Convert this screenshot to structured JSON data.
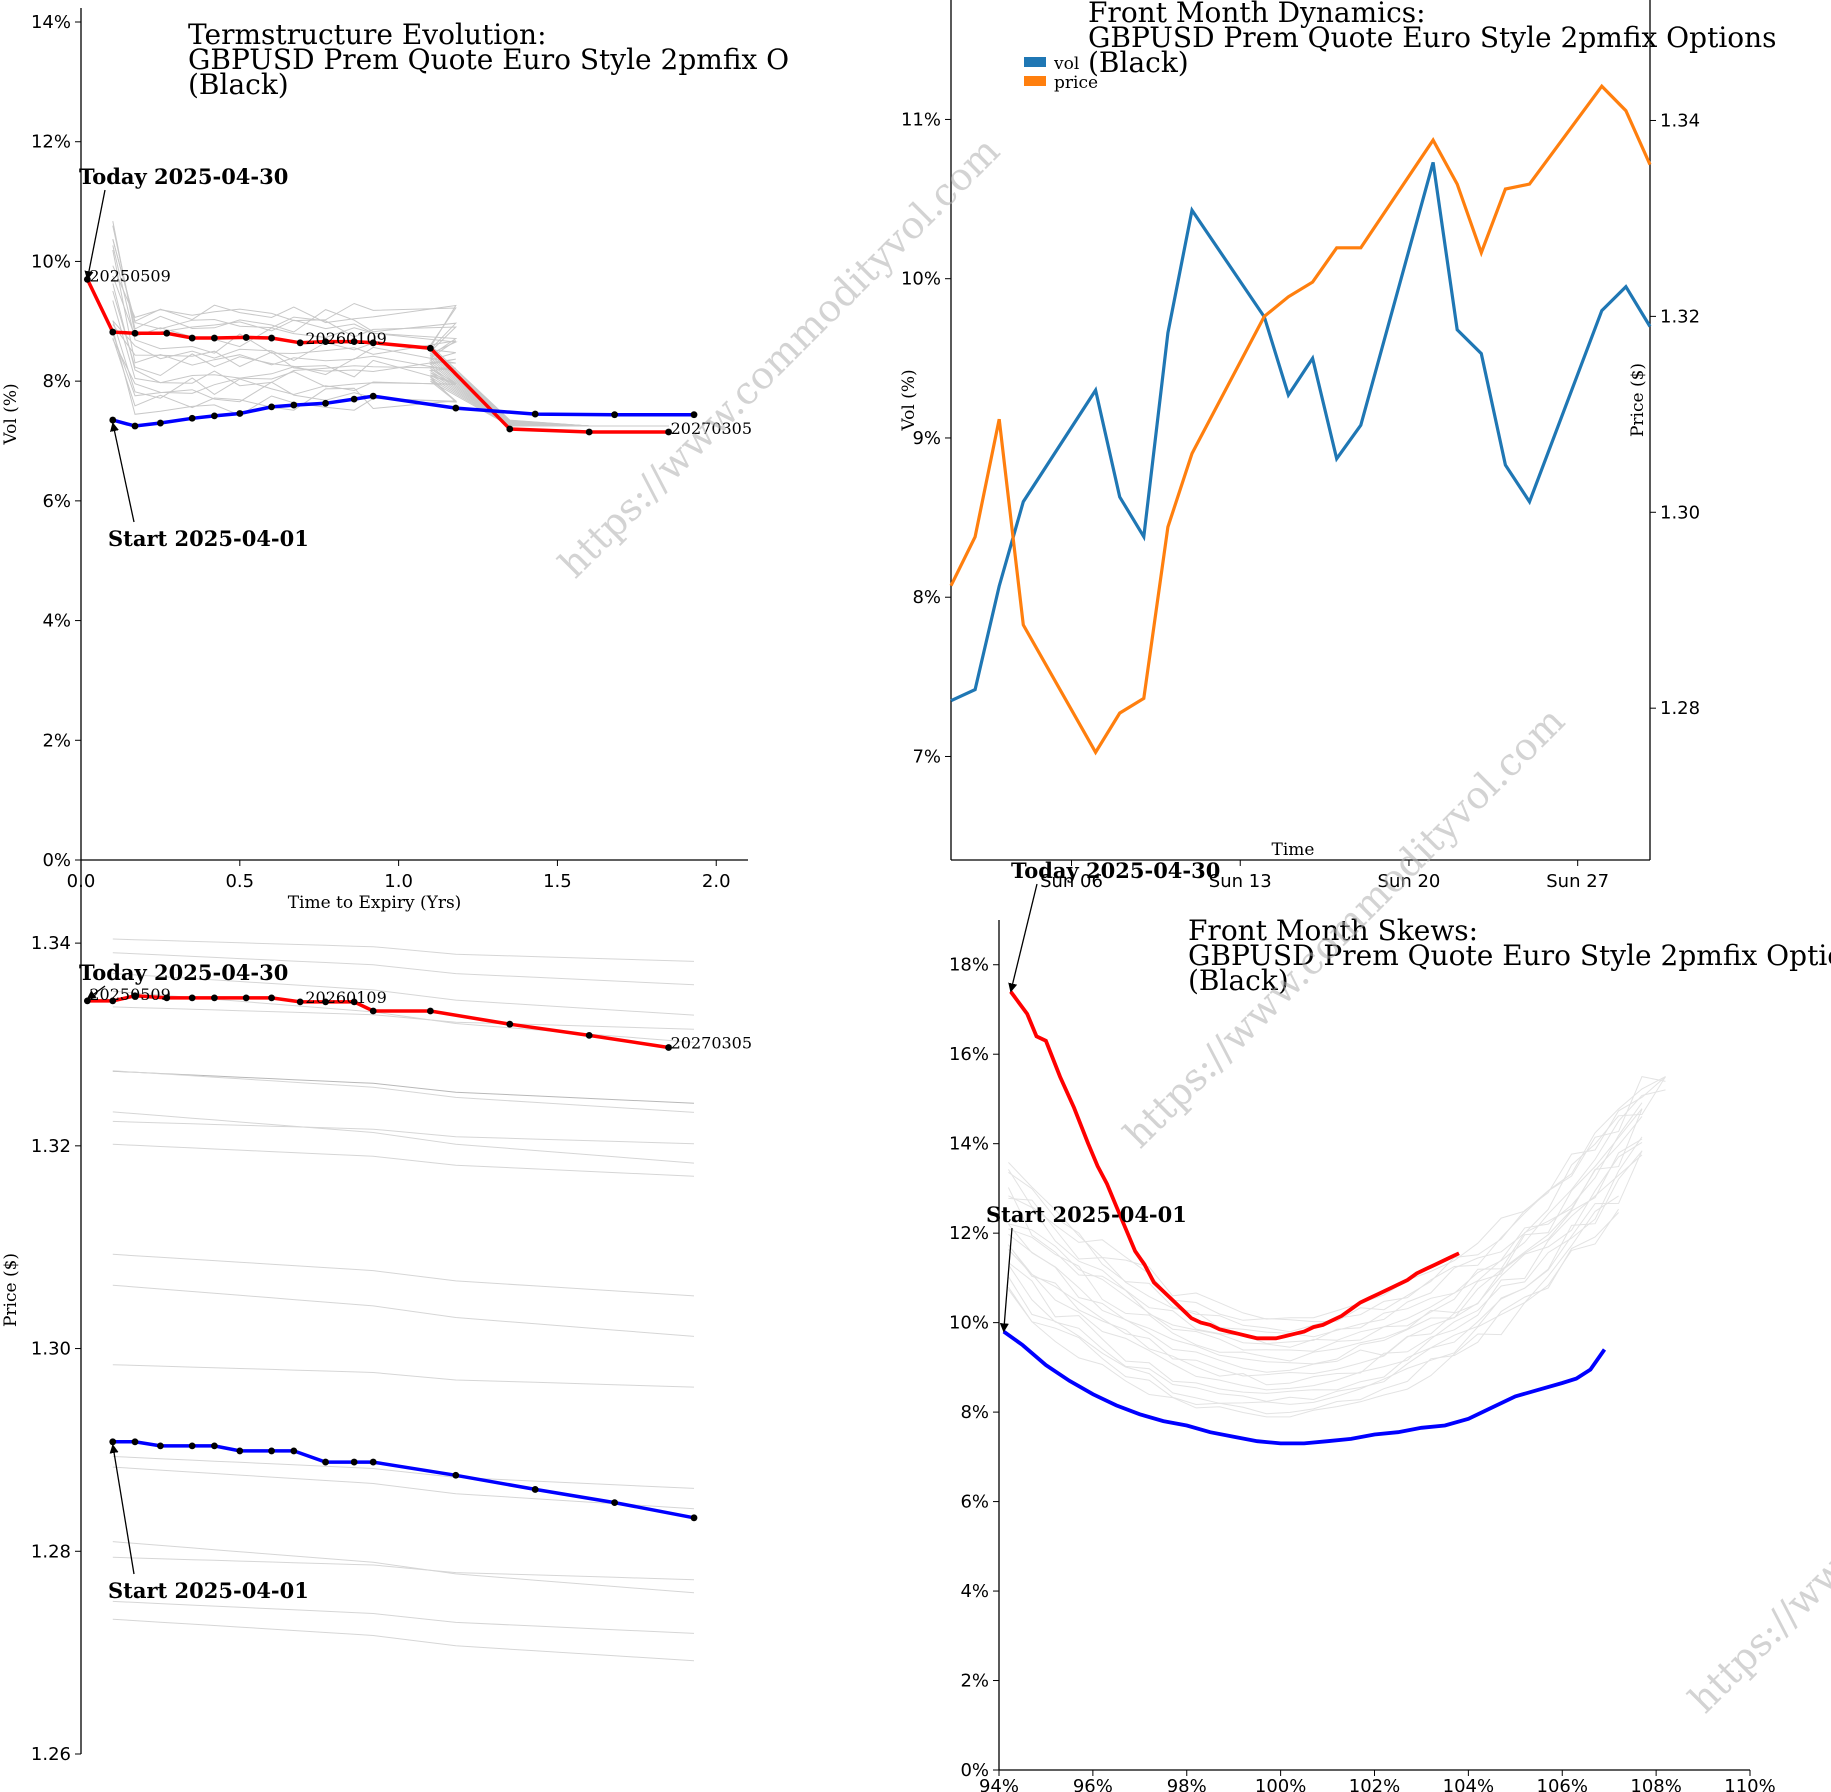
{
  "watermark": "https://www.commodityvol.com",
  "chart_data": [
    {
      "id": "termstructure",
      "type": "line",
      "title": [
        "Termstructure Evolution:",
        "GBPUSD Prem Quote Euro Style 2pmfix O",
        "(Black)"
      ],
      "xlabel": "Time to Expiry (Yrs)",
      "ylabel": "Vol (%)",
      "xlim": [
        0,
        2.1
      ],
      "ylim": [
        0,
        14
      ],
      "x_ticks": [
        0,
        0.5,
        1.0,
        1.5,
        2.0
      ],
      "x_tick_labels": [
        "0.0",
        "0.5",
        "1.0",
        "1.5",
        "2.0"
      ],
      "y_ticks": [
        0,
        2,
        4,
        6,
        8,
        10,
        12,
        14
      ],
      "y_tick_labels": [
        "0%",
        "2%",
        "4%",
        "6%",
        "8%",
        "10%",
        "12%",
        "14%"
      ],
      "annotations": [
        {
          "text": "Today 2025-04-30",
          "target": [
            0.02,
            9.7
          ]
        },
        {
          "text": "Start 2025-04-01",
          "target": [
            0.1,
            7.3
          ]
        }
      ],
      "point_labels": [
        {
          "text": "20250509",
          "x": 0.02,
          "y": 9.7
        },
        {
          "text": "20260109",
          "x": 0.7,
          "y": 8.65
        },
        {
          "text": "20270305",
          "x": 1.85,
          "y": 7.15
        }
      ],
      "series": [
        {
          "name": "Today 2025-04-30",
          "color": "#ff0000",
          "x": [
            0.02,
            0.1,
            0.17,
            0.27,
            0.35,
            0.42,
            0.52,
            0.6,
            0.69,
            0.77,
            0.86,
            0.92,
            1.1,
            1.35,
            1.6,
            1.85
          ],
          "y": [
            9.7,
            8.82,
            8.8,
            8.8,
            8.72,
            8.72,
            8.73,
            8.72,
            8.64,
            8.66,
            8.66,
            8.64,
            8.55,
            7.2,
            7.15,
            7.15
          ]
        },
        {
          "name": "Start 2025-04-01",
          "color": "#0000ff",
          "x": [
            0.1,
            0.17,
            0.25,
            0.35,
            0.42,
            0.5,
            0.6,
            0.67,
            0.77,
            0.86,
            0.92,
            1.18,
            1.43,
            1.68,
            1.93
          ],
          "y": [
            7.35,
            7.25,
            7.3,
            7.38,
            7.42,
            7.46,
            7.57,
            7.6,
            7.63,
            7.7,
            7.75,
            7.55,
            7.45,
            7.44,
            7.44
          ]
        }
      ]
    },
    {
      "id": "front-month-dynamics",
      "type": "line",
      "title": [
        "Front Month Dynamics:",
        "GBPUSD Prem Quote Euro Style 2pmfix Options",
        "(Black)"
      ],
      "xlabel": "Time",
      "ylabel": "Vol (%)",
      "y2label": "Price ($)",
      "x": [
        "2025-04-01",
        "2025-04-02",
        "2025-04-03",
        "2025-04-04",
        "2025-04-07",
        "2025-04-08",
        "2025-04-09",
        "2025-04-10",
        "2025-04-11",
        "2025-04-14",
        "2025-04-15",
        "2025-04-16",
        "2025-04-17",
        "2025-04-18",
        "2025-04-21",
        "2025-04-22",
        "2025-04-23",
        "2025-04-24",
        "2025-04-25",
        "2025-04-28",
        "2025-04-29",
        "2025-04-30"
      ],
      "x_ticks": [
        "Sun 06",
        "Sun 13",
        "Sun 20",
        "Sun 27"
      ],
      "y_ticks": [
        7,
        8,
        9,
        10,
        11
      ],
      "y_tick_labels": [
        "7%",
        "8%",
        "9%",
        "10%",
        "11%"
      ],
      "ylim": [
        6.35,
        11.75
      ],
      "y2_ticks": [
        1.28,
        1.3,
        1.32,
        1.34
      ],
      "y2_tick_labels": [
        "1.28",
        "1.30",
        "1.32",
        "1.34"
      ],
      "y2lim": [
        1.2645,
        1.3523
      ],
      "legend_position": "top-left",
      "series": [
        {
          "name": "vol",
          "color": "#1f77b4",
          "axis": "left",
          "values": [
            7.35,
            7.42,
            8.07,
            8.6,
            9.3,
            8.63,
            8.38,
            9.66,
            10.43,
            9.76,
            9.27,
            9.5,
            8.87,
            9.08,
            10.73,
            9.68,
            9.53,
            8.83,
            8.6,
            9.8,
            9.95,
            9.7
          ]
        },
        {
          "name": "price",
          "color": "#ff7f0e",
          "axis": "right",
          "values": [
            1.2925,
            1.2975,
            1.3095,
            1.2885,
            1.2755,
            1.2795,
            1.281,
            1.2985,
            1.306,
            1.32,
            1.322,
            1.3235,
            1.327,
            1.327,
            1.338,
            1.3335,
            1.3265,
            1.333,
            1.3335,
            1.3435,
            1.341,
            1.3355
          ]
        }
      ]
    },
    {
      "id": "price-termstructure",
      "type": "line",
      "ylabel": "Price ($)",
      "xlim": [
        0,
        2.1
      ],
      "ylim": [
        1.26,
        1.3482
      ],
      "y_ticks": [
        1.26,
        1.28,
        1.3,
        1.32,
        1.34
      ],
      "y_tick_labels": [
        "1.26",
        "1.28",
        "1.30",
        "1.32",
        "1.34"
      ],
      "annotations": [
        {
          "text": "Today 2025-04-30",
          "target": [
            0.02,
            1.3345
          ]
        },
        {
          "text": "Start 2025-04-01",
          "target": [
            0.1,
            1.2905
          ]
        }
      ],
      "point_labels": [
        {
          "text": "20250509",
          "x": 0.02,
          "y": 1.3345
        },
        {
          "text": "20260109",
          "x": 0.7,
          "y": 1.3342
        },
        {
          "text": "20270305",
          "x": 1.85,
          "y": 1.3297
        }
      ],
      "series": [
        {
          "name": "Today 2025-04-30",
          "color": "#ff0000",
          "x": [
            0.02,
            0.1,
            0.17,
            0.27,
            0.35,
            0.42,
            0.52,
            0.6,
            0.69,
            0.77,
            0.86,
            0.92,
            1.1,
            1.35,
            1.6,
            1.85
          ],
          "y": [
            1.3343,
            1.3343,
            1.3348,
            1.3346,
            1.3346,
            1.3346,
            1.3346,
            1.3346,
            1.3342,
            1.3342,
            1.3342,
            1.3333,
            1.3333,
            1.332,
            1.3309,
            1.3297
          ]
        },
        {
          "name": "Start 2025-04-01",
          "color": "#0000ff",
          "x": [
            0.1,
            0.17,
            0.25,
            0.35,
            0.42,
            0.5,
            0.6,
            0.67,
            0.77,
            0.86,
            0.92,
            1.18,
            1.43,
            1.68,
            1.93
          ],
          "y": [
            1.2908,
            1.2908,
            1.2904,
            1.2904,
            1.2904,
            1.2899,
            1.2899,
            1.2899,
            1.2888,
            1.2888,
            1.2888,
            1.2875,
            1.2861,
            1.2848,
            1.2833
          ]
        }
      ]
    },
    {
      "id": "front-month-skews",
      "type": "line",
      "title": [
        "Front Month Skews:",
        "GBPUSD Prem Quote Euro Style 2pmfix Optio",
        "(Black)"
      ],
      "xlim": [
        94,
        110
      ],
      "ylim": [
        0,
        19
      ],
      "x_ticks": [
        94,
        96,
        98,
        100,
        102,
        104,
        106,
        108,
        110
      ],
      "x_tick_labels": [
        "94%",
        "96%",
        "98%",
        "100%",
        "102%",
        "104%",
        "106%",
        "108%",
        "110%"
      ],
      "y_ticks": [
        0,
        2,
        4,
        6,
        8,
        10,
        12,
        14,
        16,
        18
      ],
      "y_tick_labels": [
        "0%",
        "2%",
        "4%",
        "6%",
        "8%",
        "10%",
        "12%",
        "14%",
        "16%",
        "18%"
      ],
      "annotations": [
        {
          "text": "Today 2025-04-30",
          "target": [
            94.25,
            17.4
          ]
        },
        {
          "text": "Start 2025-04-01",
          "target": [
            94.1,
            9.8
          ]
        }
      ],
      "series": [
        {
          "name": "Today 2025-04-30",
          "color": "#ff0000",
          "x": [
            94.25,
            94.6,
            94.8,
            95.0,
            95.3,
            95.6,
            95.9,
            96.1,
            96.3,
            96.5,
            96.7,
            96.9,
            97.1,
            97.3,
            97.5,
            97.7,
            97.9,
            98.1,
            98.3,
            98.5,
            98.7,
            98.9,
            99.1,
            99.3,
            99.5,
            99.7,
            99.9,
            100.1,
            100.3,
            100.5,
            100.7,
            100.9,
            101.1,
            101.3,
            101.5,
            101.7,
            101.9,
            102.1,
            102.3,
            102.5,
            102.7,
            102.9,
            103.1,
            103.3,
            103.5,
            103.7,
            103.8
          ],
          "y": [
            17.4,
            16.9,
            16.4,
            16.3,
            15.5,
            14.8,
            14.0,
            13.5,
            13.1,
            12.6,
            12.1,
            11.6,
            11.3,
            10.9,
            10.7,
            10.5,
            10.3,
            10.1,
            10.0,
            9.95,
            9.85,
            9.8,
            9.75,
            9.7,
            9.65,
            9.65,
            9.65,
            9.7,
            9.75,
            9.8,
            9.9,
            9.95,
            10.05,
            10.15,
            10.3,
            10.45,
            10.55,
            10.65,
            10.75,
            10.85,
            10.95,
            11.1,
            11.2,
            11.3,
            11.4,
            11.5,
            11.55
          ]
        },
        {
          "name": "Start 2025-04-01",
          "color": "#0000ff",
          "x": [
            94.1,
            94.5,
            95.0,
            95.5,
            96.0,
            96.5,
            97.0,
            97.5,
            98.0,
            98.5,
            99.0,
            99.5,
            100.0,
            100.5,
            101.0,
            101.5,
            102.0,
            102.5,
            103.0,
            103.5,
            104.0,
            104.5,
            105.0,
            105.5,
            106.0,
            106.3,
            106.6,
            106.9
          ],
          "y": [
            9.8,
            9.5,
            9.05,
            8.7,
            8.4,
            8.15,
            7.95,
            7.8,
            7.7,
            7.55,
            7.45,
            7.35,
            7.3,
            7.3,
            7.35,
            7.4,
            7.5,
            7.55,
            7.65,
            7.7,
            7.85,
            8.1,
            8.35,
            8.5,
            8.65,
            8.75,
            8.95,
            9.4
          ]
        }
      ]
    }
  ]
}
